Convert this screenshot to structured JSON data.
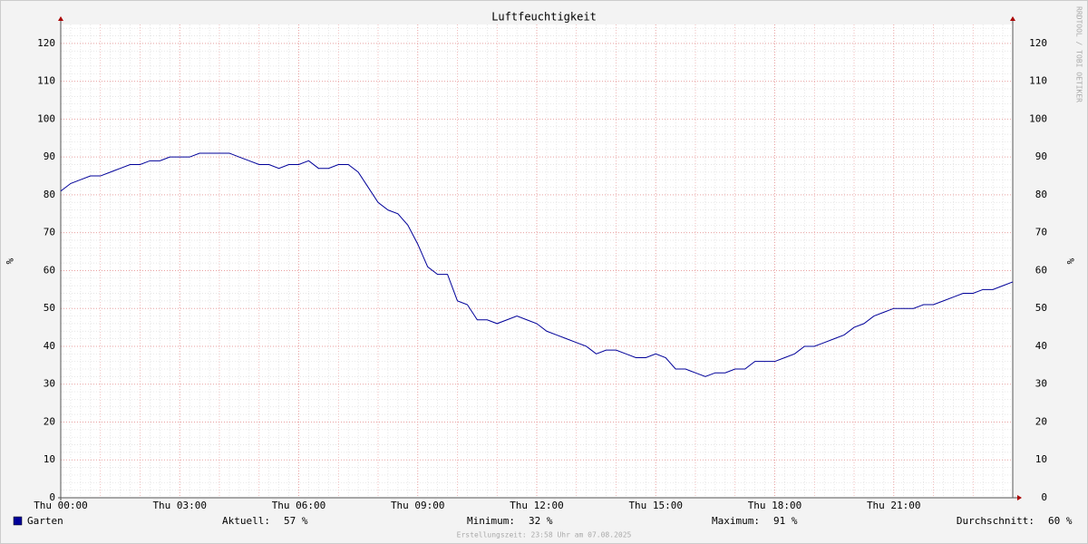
{
  "chart_data": {
    "type": "line",
    "title": "Luftfeuchtigkeit",
    "y_label": "%",
    "watermark": "RRDTOOL / TOBI OETIKER",
    "footer": "Erstellungszeit: 23:58 Uhr am 07.08.2025",
    "x": [
      0,
      0.25,
      0.5,
      0.75,
      1,
      1.25,
      1.5,
      1.75,
      2,
      2.25,
      2.5,
      2.75,
      3,
      3.25,
      3.5,
      3.75,
      4,
      4.25,
      4.5,
      4.75,
      5,
      5.25,
      5.5,
      5.75,
      6,
      6.25,
      6.5,
      6.75,
      7,
      7.25,
      7.5,
      7.75,
      8,
      8.25,
      8.5,
      8.75,
      9,
      9.25,
      9.5,
      9.75,
      10,
      10.25,
      10.5,
      10.75,
      11,
      11.25,
      11.5,
      11.75,
      12,
      12.25,
      12.5,
      12.75,
      13,
      13.25,
      13.5,
      13.75,
      14,
      14.25,
      14.5,
      14.75,
      15,
      15.25,
      15.5,
      15.75,
      16,
      16.25,
      16.5,
      16.75,
      17,
      17.25,
      17.5,
      17.75,
      18,
      18.25,
      18.5,
      18.75,
      19,
      19.25,
      19.5,
      19.75,
      20,
      20.25,
      20.5,
      20.75,
      21,
      21.25,
      21.5,
      21.75,
      22,
      22.25,
      22.5,
      22.75,
      23,
      23.25,
      23.5,
      23.75,
      24
    ],
    "series": [
      {
        "name": "Garten",
        "color": "#000099",
        "values": [
          81,
          83,
          84,
          85,
          85,
          86,
          87,
          88,
          88,
          89,
          89,
          90,
          90,
          90,
          91,
          91,
          91,
          91,
          90,
          89,
          88,
          88,
          87,
          88,
          88,
          89,
          87,
          87,
          88,
          88,
          86,
          82,
          78,
          76,
          75,
          72,
          67,
          61,
          59,
          59,
          52,
          51,
          47,
          47,
          46,
          47,
          48,
          47,
          46,
          44,
          43,
          42,
          41,
          40,
          38,
          39,
          39,
          38,
          37,
          37,
          38,
          37,
          34,
          34,
          33,
          32,
          33,
          33,
          34,
          34,
          36,
          36,
          36,
          37,
          38,
          40,
          40,
          41,
          42,
          43,
          45,
          46,
          48,
          49,
          50,
          50,
          50,
          51,
          51,
          52,
          53,
          54,
          54,
          55,
          55,
          56,
          57
        ]
      }
    ],
    "stats": [
      {
        "label": "Aktuell:",
        "text": "57 %"
      },
      {
        "label": "Minimum:",
        "text": "32 %"
      },
      {
        "label": "Maximum:",
        "text": "91 %"
      },
      {
        "label": "Durchschnitt:",
        "text": "60 %"
      }
    ],
    "xlim": [
      0,
      24
    ],
    "xticks": [
      {
        "value": 0,
        "label": "Thu 00:00"
      },
      {
        "value": 3,
        "label": "Thu 03:00"
      },
      {
        "value": 6,
        "label": "Thu 06:00"
      },
      {
        "value": 9,
        "label": "Thu 09:00"
      },
      {
        "value": 12,
        "label": "Thu 12:00"
      },
      {
        "value": 15,
        "label": "Thu 15:00"
      },
      {
        "value": 18,
        "label": "Thu 18:00"
      },
      {
        "value": 21,
        "label": "Thu 21:00"
      }
    ],
    "ylim": [
      0,
      125
    ],
    "yticks": [
      0,
      10,
      20,
      30,
      40,
      50,
      60,
      70,
      80,
      90,
      100,
      110,
      120
    ],
    "grid": true
  }
}
